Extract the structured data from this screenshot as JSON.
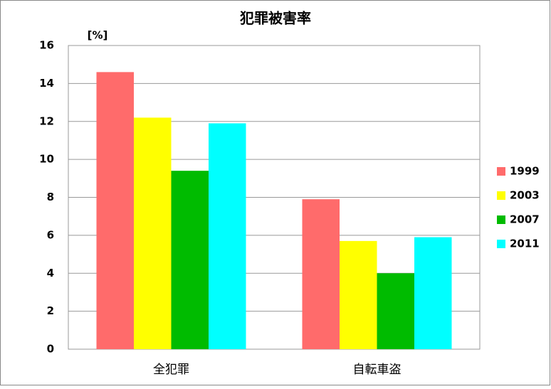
{
  "chart_data": {
    "type": "bar",
    "title": "犯罪被害率",
    "y_label": "[%]",
    "categories": [
      "全犯罪",
      "自転車盗"
    ],
    "series": [
      {
        "name": "1999",
        "color": "#ff6b6b",
        "values": [
          14.6,
          7.9
        ]
      },
      {
        "name": "2003",
        "color": "#ffff00",
        "values": [
          12.2,
          5.7
        ]
      },
      {
        "name": "2007",
        "color": "#00bb00",
        "values": [
          9.4,
          4.0
        ]
      },
      {
        "name": "2011",
        "color": "#00ffff",
        "values": [
          11.9,
          5.9
        ]
      }
    ],
    "ylim": [
      0,
      16
    ],
    "yticks": [
      0,
      2,
      4,
      6,
      8,
      10,
      12,
      14,
      16
    ],
    "grid": true,
    "legend": "right"
  }
}
